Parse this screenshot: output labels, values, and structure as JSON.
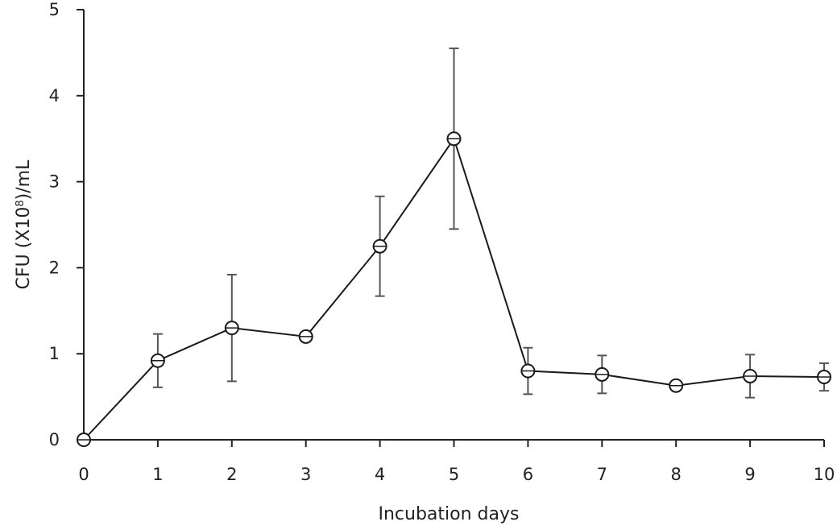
{
  "chart_data": {
    "type": "line",
    "title": "",
    "xlabel": "Incubation days",
    "ylabel": {
      "prefix": "CFU (X10",
      "superscript": "8",
      "suffix": ")/mL"
    },
    "xlim": [
      0,
      10
    ],
    "ylim": [
      0,
      5
    ],
    "x_ticks": [
      "0",
      "1",
      "2",
      "3",
      "4",
      "5",
      "6",
      "7",
      "8",
      "9",
      "10"
    ],
    "y_ticks": [
      "0",
      "1",
      "2",
      "3",
      "4",
      "5"
    ],
    "grid": false,
    "legend": "none",
    "colors": {
      "line": "#1a1a1a",
      "marker_edge": "#1a1a1a",
      "marker_fill": "#ffffff",
      "error_bar": "#555555",
      "axis": "#222222"
    },
    "series": [
      {
        "marker": "open-circle",
        "x": [
          0,
          1,
          2,
          3,
          4,
          5,
          6,
          7,
          8,
          9,
          10
        ],
        "y": [
          0.0,
          0.92,
          1.3,
          1.2,
          2.25,
          3.5,
          0.8,
          0.76,
          0.63,
          0.74,
          0.73
        ],
        "error": [
          0.0,
          0.31,
          0.62,
          0.0,
          0.58,
          1.05,
          0.27,
          0.22,
          0.0,
          0.25,
          0.16
        ]
      }
    ]
  }
}
